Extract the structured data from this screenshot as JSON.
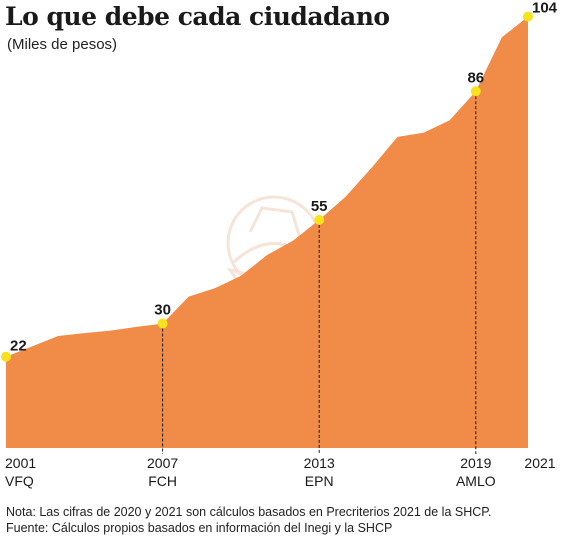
{
  "title": "Lo que debe cada ciudadano",
  "subtitle": "(Miles de pesos)",
  "notes": {
    "line1": "Nota: Las cifras de 2020 y 2021 son cálculos basados en Precriterios 2021 de la SHCP.",
    "line2": "Fuente: Cálculos propios basados en información del Inegi y la SHCP"
  },
  "colors": {
    "area": "#f08c47",
    "marker": "#f7e21c",
    "text": "#1a1a1a"
  },
  "chart_data": {
    "type": "area",
    "title": "Lo que debe cada ciudadano",
    "ylabel": "",
    "xlabel": "",
    "x": [
      2001,
      2002,
      2003,
      2004,
      2005,
      2006,
      2007,
      2008,
      2009,
      2010,
      2011,
      2012,
      2013,
      2014,
      2015,
      2016,
      2017,
      2018,
      2019,
      2020,
      2021
    ],
    "values": [
      22,
      24.5,
      27,
      27.7,
      28.3,
      29.2,
      30,
      36.5,
      38.5,
      41.5,
      46.5,
      50,
      55,
      60.5,
      67.5,
      75,
      76,
      79,
      86,
      99,
      104
    ],
    "xlim": [
      2001,
      2021
    ],
    "ylim": [
      0,
      108
    ],
    "grid": false,
    "legend": "none",
    "markers": [
      {
        "year": 2001,
        "value": 22,
        "label": "22"
      },
      {
        "year": 2007,
        "value": 30,
        "label": "30"
      },
      {
        "year": 2013,
        "value": 55,
        "label": "55"
      },
      {
        "year": 2019,
        "value": 86,
        "label": "86"
      },
      {
        "year": 2021,
        "value": 104,
        "label": "104"
      }
    ],
    "x_ticks": [
      {
        "year": 2001,
        "label": "2001",
        "sublabel": "VFQ"
      },
      {
        "year": 2007,
        "label": "2007",
        "sublabel": "FCH"
      },
      {
        "year": 2013,
        "label": "2013",
        "sublabel": "EPN"
      },
      {
        "year": 2019,
        "label": "2019",
        "sublabel": "AMLO"
      },
      {
        "year": 2021,
        "label": "2021",
        "sublabel": ""
      }
    ]
  }
}
